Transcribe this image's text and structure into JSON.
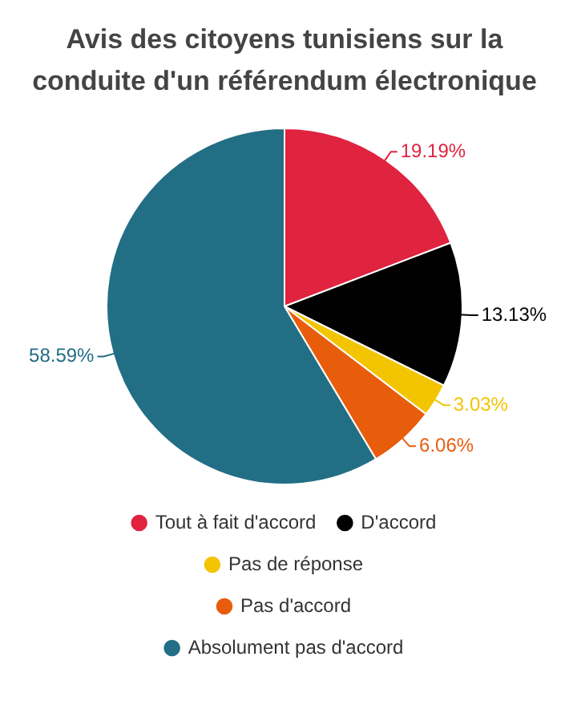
{
  "chart_data": {
    "type": "pie",
    "title": "Avis des citoyens tunisiens sur la conduite d'un référendum électronique",
    "categories": [
      "Tout à fait d'accord",
      "D'accord",
      "Pas de réponse",
      "Pas d'accord",
      "Absolument pas d'accord"
    ],
    "values": [
      19.19,
      13.13,
      3.03,
      6.06,
      58.59
    ],
    "colors": [
      "#e0233f",
      "#000000",
      "#f2c500",
      "#e85d0c",
      "#226e85"
    ],
    "value_labels": [
      "19.19%",
      "13.13%",
      "3.03%",
      "6.06%",
      "58.59%"
    ],
    "legend": "bottom"
  }
}
